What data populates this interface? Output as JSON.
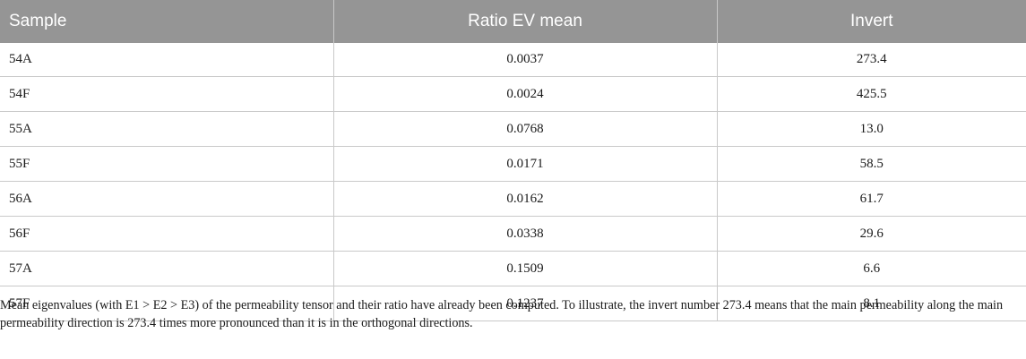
{
  "table": {
    "headers": [
      "Sample",
      "Ratio EV mean",
      "Invert"
    ],
    "rows": [
      [
        "54A",
        "0.0037",
        "273.4"
      ],
      [
        "54F",
        "0.0024",
        "425.5"
      ],
      [
        "55A",
        "0.0768",
        "13.0"
      ],
      [
        "55F",
        "0.0171",
        "58.5"
      ],
      [
        "56A",
        "0.0162",
        "61.7"
      ],
      [
        "56F",
        "0.0338",
        "29.6"
      ],
      [
        "57A",
        "0.1509",
        "6.6"
      ],
      [
        "57F",
        "0.1237",
        "8.1"
      ]
    ]
  },
  "footnote": "Mean eigenvalues (with E1 > E2 > E3) of the permeability tensor and their ratio have already been computed. To illustrate, the invert number 273.4 means that the main permeability along the main permeability direction is 273.4 times more pronounced than it is in the orthogonal directions.",
  "colors": {
    "header_bg": "#959595",
    "header_text": "#ffffff",
    "grid_line": "#c9c9c9"
  }
}
